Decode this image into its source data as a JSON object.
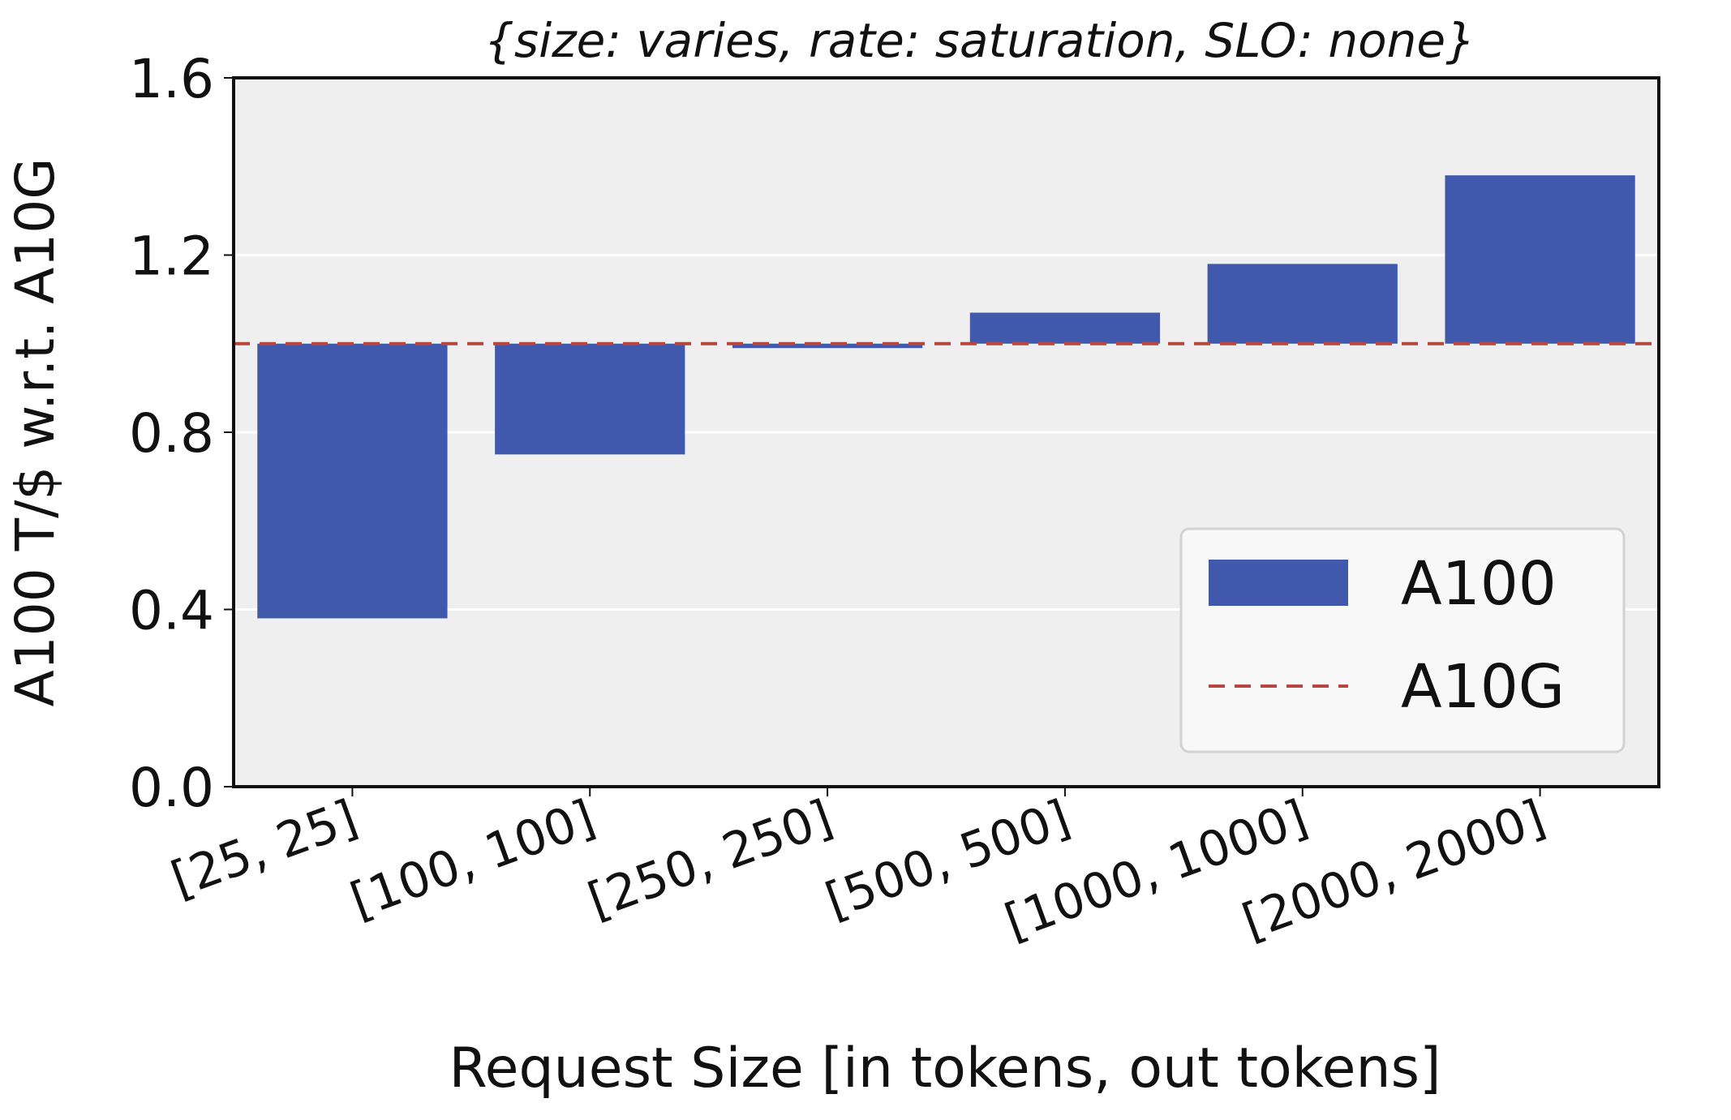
{
  "chart_data": {
    "type": "bar",
    "title": "{size: varies, rate: saturation, SLO: none}",
    "xlabel": "Request Size [in tokens, out tokens]",
    "ylabel": "A100 T/$ w.r.t. A10G",
    "categories": [
      "[25, 25]",
      "[100, 100]",
      "[250, 250]",
      "[500, 500]",
      "[1000, 1000]",
      "[2000, 2000]"
    ],
    "baseline": 1.0,
    "series": [
      {
        "name": "A100",
        "values": [
          0.38,
          0.75,
          0.99,
          1.07,
          1.18,
          1.38
        ],
        "color": "#4159ad"
      }
    ],
    "reference_line": {
      "name": "A10G",
      "value": 1.0,
      "color": "#b5473f",
      "style": "dashed"
    },
    "ylim": [
      0.0,
      1.6
    ],
    "yticks": [
      0.0,
      0.4,
      0.8,
      1.2,
      1.6
    ],
    "ytick_labels": [
      "0.0",
      "0.4",
      "0.8",
      "1.2",
      "1.6"
    ],
    "grid": true,
    "legend_position": "lower-right",
    "background_color": "#efefef"
  }
}
